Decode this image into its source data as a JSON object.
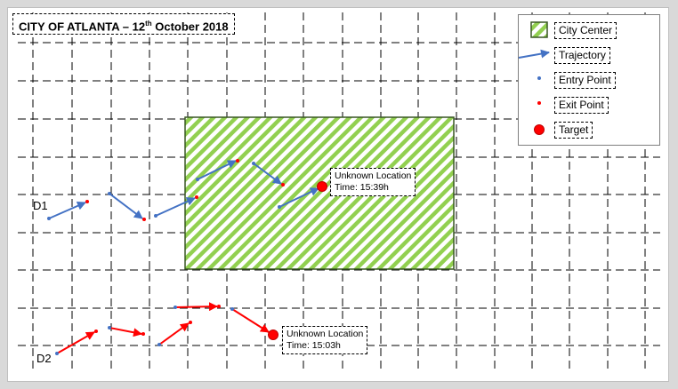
{
  "title": {
    "prefix": "CITY OF ATLANTA – 12",
    "sup": "th",
    "suffix": " October 2018"
  },
  "legend": {
    "city_center": "City Center",
    "trajectory": "Trajectory",
    "entry_point": "Entry Point",
    "exit_point": "Exit Point",
    "target": "Target"
  },
  "drones": {
    "d1": "D1",
    "d2": "D2"
  },
  "unknown_d1": {
    "line1": "Unknown Location",
    "line2": "Time: 15:39h"
  },
  "unknown_d2": {
    "line1": "Unknown Location",
    "line2": "Time: 15:03h"
  },
  "colors": {
    "d1": "#4472c4",
    "d2": "#ff0000",
    "city_center_fill": "#92d050",
    "city_center_border": "#385723",
    "entry": "#4472c4",
    "exit": "#ff0000",
    "target": "#ff0000"
  }
}
